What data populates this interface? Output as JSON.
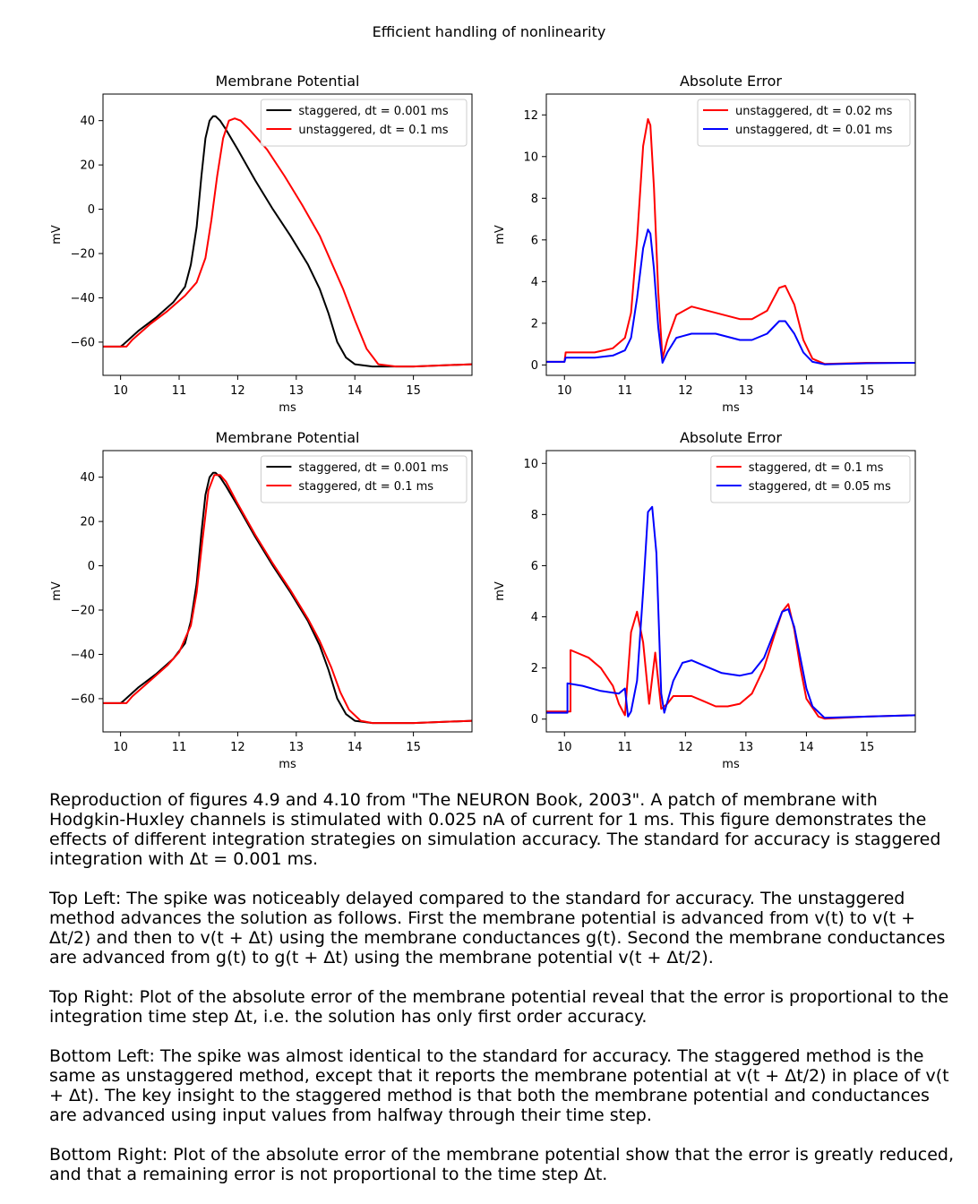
{
  "suptitle": "Efficient handling of nonlinearity",
  "chart_data": [
    {
      "id": "top-left",
      "type": "line",
      "title": "Membrane Potential",
      "xlabel": "ms",
      "ylabel": "mV",
      "xlim": [
        9.7,
        16.0
      ],
      "ylim": [
        -75,
        52
      ],
      "xticks": [
        10,
        11,
        12,
        13,
        14,
        15
      ],
      "yticks": [
        -60,
        -40,
        -20,
        0,
        20,
        40
      ],
      "legend": "top-right",
      "series": [
        {
          "name": "staggered, dt = 0.001 ms",
          "color": "#000000",
          "x": [
            9.7,
            10.0,
            10.05,
            10.3,
            10.6,
            10.9,
            11.1,
            11.2,
            11.3,
            11.38,
            11.45,
            11.52,
            11.58,
            11.62,
            11.7,
            11.8,
            12.0,
            12.3,
            12.6,
            12.9,
            13.2,
            13.4,
            13.55,
            13.7,
            13.85,
            14.0,
            14.3,
            15.0,
            16.0
          ],
          "y": [
            -62,
            -62,
            -61,
            -55,
            -49,
            -42,
            -35,
            -25,
            -8,
            15,
            32,
            40,
            42,
            42,
            40,
            36,
            27,
            13,
            0,
            -12,
            -25,
            -36,
            -47,
            -60,
            -67,
            -70,
            -71,
            -71,
            -70
          ]
        },
        {
          "name": "unstaggered, dt = 0.1 ms",
          "color": "#ff0000",
          "x": [
            9.7,
            10.1,
            10.2,
            10.5,
            10.8,
            11.1,
            11.3,
            11.45,
            11.55,
            11.65,
            11.75,
            11.85,
            11.95,
            12.05,
            12.2,
            12.5,
            12.8,
            13.1,
            13.4,
            13.6,
            13.8,
            14.0,
            14.2,
            14.4,
            14.7,
            15.0,
            16.0
          ],
          "y": [
            -62,
            -62,
            -59,
            -52,
            -46,
            -39,
            -33,
            -22,
            -5,
            15,
            32,
            40,
            41,
            40,
            36,
            27,
            15,
            2,
            -12,
            -24,
            -36,
            -50,
            -63,
            -70,
            -71,
            -71,
            -70
          ]
        }
      ]
    },
    {
      "id": "top-right",
      "type": "line",
      "title": "Absolute Error",
      "xlabel": "ms",
      "ylabel": "mV",
      "xlim": [
        9.7,
        15.8
      ],
      "ylim": [
        -0.5,
        13
      ],
      "xticks": [
        10,
        11,
        12,
        13,
        14,
        15
      ],
      "yticks": [
        0,
        2,
        4,
        6,
        8,
        10,
        12
      ],
      "legend": "top-right",
      "series": [
        {
          "name": "unstaggered, dt = 0.02 ms",
          "color": "#ff0000",
          "x": [
            9.7,
            10.0,
            10.02,
            10.5,
            10.8,
            11.0,
            11.1,
            11.2,
            11.3,
            11.38,
            11.42,
            11.48,
            11.55,
            11.62,
            11.7,
            11.85,
            12.1,
            12.5,
            12.9,
            13.1,
            13.35,
            13.55,
            13.65,
            13.8,
            13.95,
            14.1,
            14.3,
            15.0,
            15.8
          ],
          "y": [
            0.15,
            0.15,
            0.6,
            0.6,
            0.8,
            1.3,
            2.5,
            6.0,
            10.5,
            11.8,
            11.5,
            8.5,
            3.5,
            0.3,
            1.2,
            2.4,
            2.8,
            2.5,
            2.2,
            2.2,
            2.6,
            3.7,
            3.8,
            2.9,
            1.2,
            0.3,
            0.05,
            0.1,
            0.1
          ]
        },
        {
          "name": "unstaggered, dt = 0.01 ms",
          "color": "#0000ff",
          "x": [
            9.7,
            10.0,
            10.02,
            10.5,
            10.8,
            11.0,
            11.1,
            11.2,
            11.3,
            11.38,
            11.42,
            11.48,
            11.55,
            11.62,
            11.7,
            11.85,
            12.1,
            12.5,
            12.9,
            13.1,
            13.35,
            13.55,
            13.65,
            13.8,
            13.95,
            14.1,
            14.3,
            15.0,
            15.8
          ],
          "y": [
            0.15,
            0.15,
            0.35,
            0.35,
            0.45,
            0.7,
            1.3,
            3.2,
            5.6,
            6.5,
            6.3,
            4.6,
            1.8,
            0.1,
            0.6,
            1.3,
            1.5,
            1.5,
            1.2,
            1.2,
            1.5,
            2.1,
            2.1,
            1.5,
            0.6,
            0.15,
            0.03,
            0.08,
            0.1
          ]
        }
      ]
    },
    {
      "id": "bottom-left",
      "type": "line",
      "title": "Membrane Potential",
      "xlabel": "ms",
      "ylabel": "mV",
      "xlim": [
        9.7,
        16.0
      ],
      "ylim": [
        -75,
        52
      ],
      "xticks": [
        10,
        11,
        12,
        13,
        14,
        15
      ],
      "yticks": [
        -60,
        -40,
        -20,
        0,
        20,
        40
      ],
      "legend": "top-right",
      "series": [
        {
          "name": "staggered, dt = 0.001 ms",
          "color": "#000000",
          "x": [
            9.7,
            10.0,
            10.05,
            10.3,
            10.6,
            10.9,
            11.1,
            11.2,
            11.3,
            11.38,
            11.45,
            11.52,
            11.58,
            11.62,
            11.7,
            11.8,
            12.0,
            12.3,
            12.6,
            12.9,
            13.2,
            13.4,
            13.55,
            13.7,
            13.85,
            14.0,
            14.3,
            15.0,
            16.0
          ],
          "y": [
            -62,
            -62,
            -61,
            -55,
            -49,
            -42,
            -35,
            -25,
            -8,
            15,
            32,
            40,
            42,
            42,
            40,
            36,
            27,
            13,
            0,
            -12,
            -25,
            -36,
            -47,
            -60,
            -67,
            -70,
            -71,
            -71,
            -70
          ]
        },
        {
          "name": "staggered, dt = 0.1 ms",
          "color": "#ff0000",
          "x": [
            9.7,
            10.1,
            10.2,
            10.5,
            10.8,
            11.0,
            11.2,
            11.3,
            11.4,
            11.5,
            11.6,
            11.7,
            11.8,
            12.0,
            12.3,
            12.6,
            12.9,
            13.2,
            13.4,
            13.6,
            13.75,
            13.9,
            14.1,
            14.3,
            15.0,
            16.0
          ],
          "y": [
            -62,
            -62,
            -59,
            -52,
            -45,
            -39,
            -27,
            -12,
            12,
            34,
            41,
            41,
            38,
            28,
            14,
            1,
            -11,
            -24,
            -34,
            -46,
            -57,
            -65,
            -70,
            -71,
            -71,
            -70
          ]
        }
      ]
    },
    {
      "id": "bottom-right",
      "type": "line",
      "title": "Absolute Error",
      "xlabel": "ms",
      "ylabel": "mV",
      "xlim": [
        9.7,
        15.8
      ],
      "ylim": [
        -0.5,
        10.5
      ],
      "xticks": [
        10,
        11,
        12,
        13,
        14,
        15
      ],
      "yticks": [
        0,
        2,
        4,
        6,
        8,
        10
      ],
      "legend": "top-right",
      "series": [
        {
          "name": "staggered, dt = 0.1 ms",
          "color": "#ff0000",
          "x": [
            9.7,
            10.1,
            10.1,
            10.2,
            10.4,
            10.6,
            10.8,
            10.9,
            11.0,
            11.1,
            11.2,
            11.3,
            11.4,
            11.5,
            11.6,
            11.7,
            11.8,
            11.9,
            12.1,
            12.3,
            12.5,
            12.7,
            12.9,
            13.1,
            13.3,
            13.5,
            13.6,
            13.7,
            13.8,
            13.9,
            14.0,
            14.2,
            14.3,
            15.0,
            15.8
          ],
          "y": [
            0.3,
            0.3,
            2.7,
            2.6,
            2.4,
            2.0,
            1.3,
            0.6,
            0.15,
            3.4,
            4.2,
            3.0,
            0.6,
            2.6,
            0.4,
            0.6,
            0.9,
            0.9,
            0.9,
            0.7,
            0.5,
            0.5,
            0.6,
            1.0,
            2.0,
            3.5,
            4.2,
            4.5,
            3.5,
            2.0,
            0.8,
            0.1,
            0.02,
            0.1,
            0.15
          ]
        },
        {
          "name": "staggered, dt = 0.05 ms",
          "color": "#0000ff",
          "x": [
            9.7,
            10.05,
            10.05,
            10.3,
            10.6,
            10.9,
            11.0,
            11.05,
            11.1,
            11.2,
            11.3,
            11.38,
            11.45,
            11.52,
            11.6,
            11.65,
            11.8,
            11.95,
            12.1,
            12.3,
            12.6,
            12.9,
            13.1,
            13.3,
            13.5,
            13.6,
            13.7,
            13.8,
            14.0,
            14.1,
            14.3,
            15.0,
            15.8
          ],
          "y": [
            0.25,
            0.25,
            1.4,
            1.3,
            1.1,
            1.0,
            1.2,
            0.1,
            0.3,
            1.5,
            5.0,
            8.1,
            8.3,
            6.5,
            1.0,
            0.25,
            1.5,
            2.2,
            2.3,
            2.1,
            1.8,
            1.7,
            1.8,
            2.4,
            3.6,
            4.2,
            4.3,
            3.6,
            1.2,
            0.5,
            0.05,
            0.1,
            0.15
          ]
        }
      ]
    }
  ],
  "caption": [
    "Reproduction of figures 4.9 and 4.10 from \"The NEURON Book, 2003\". A patch of membrane with Hodgkin-Huxley channels is stimulated with 0.025 nA of current for 1 ms. This figure demonstrates the effects of different integration strategies on simulation accuracy. The standard for accuracy is staggered integration with Δt = 0.001 ms.",
    "Top Left: The spike was noticeably delayed compared to the standard for accuracy. The unstaggered method advances the solution as follows. First the membrane potential is advanced from v(t) to v(t + Δt/2) and then to v(t + Δt) using the membrane conductances g(t). Second the membrane conductances are advanced from g(t) to g(t + Δt) using the membrane potential v(t + Δt/2).",
    "Top Right: Plot of the absolute error of the membrane potential reveal that the error is proportional to the integration time step Δt, i.e. the solution has only first order accuracy.",
    "Bottom Left: The spike was almost identical to the standard for accuracy. The staggered method is the same as unstaggered method, except that it reports the membrane potential at v(t + Δt/2) in place of v(t + Δt). The key insight to the staggered method is that both the membrane potential and conductances are advanced using input values from halfway through their time step.",
    "Bottom Right: Plot of the absolute error of the membrane potential show that the error is greatly reduced, and that a remaining error is not proportional to the time step Δt."
  ]
}
